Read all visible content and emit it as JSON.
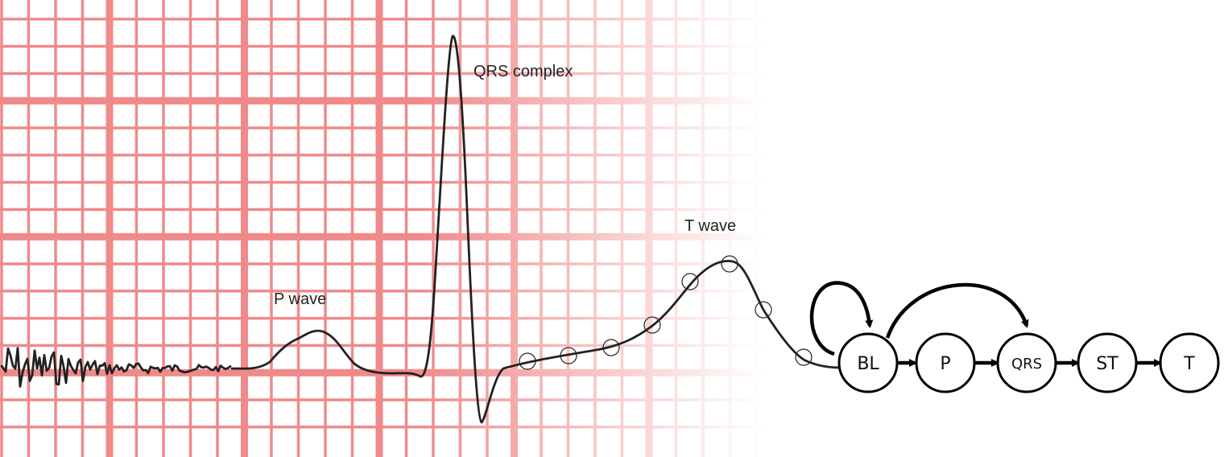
{
  "colors": {
    "grid": "#f08a8a",
    "trace": "#222222",
    "background": "#ffffff"
  },
  "annotations": {
    "p_wave": "P wave",
    "qrs_complex": "QRS complex",
    "t_wave": "T wave"
  },
  "state_machine": {
    "states": [
      "BL",
      "P",
      "QRS",
      "ST",
      "T"
    ],
    "transitions": [
      {
        "from": "BL",
        "to": "BL"
      },
      {
        "from": "BL",
        "to": "P"
      },
      {
        "from": "BL",
        "to": "QRS"
      },
      {
        "from": "P",
        "to": "QRS"
      },
      {
        "from": "QRS",
        "to": "ST"
      },
      {
        "from": "ST",
        "to": "T"
      }
    ]
  }
}
